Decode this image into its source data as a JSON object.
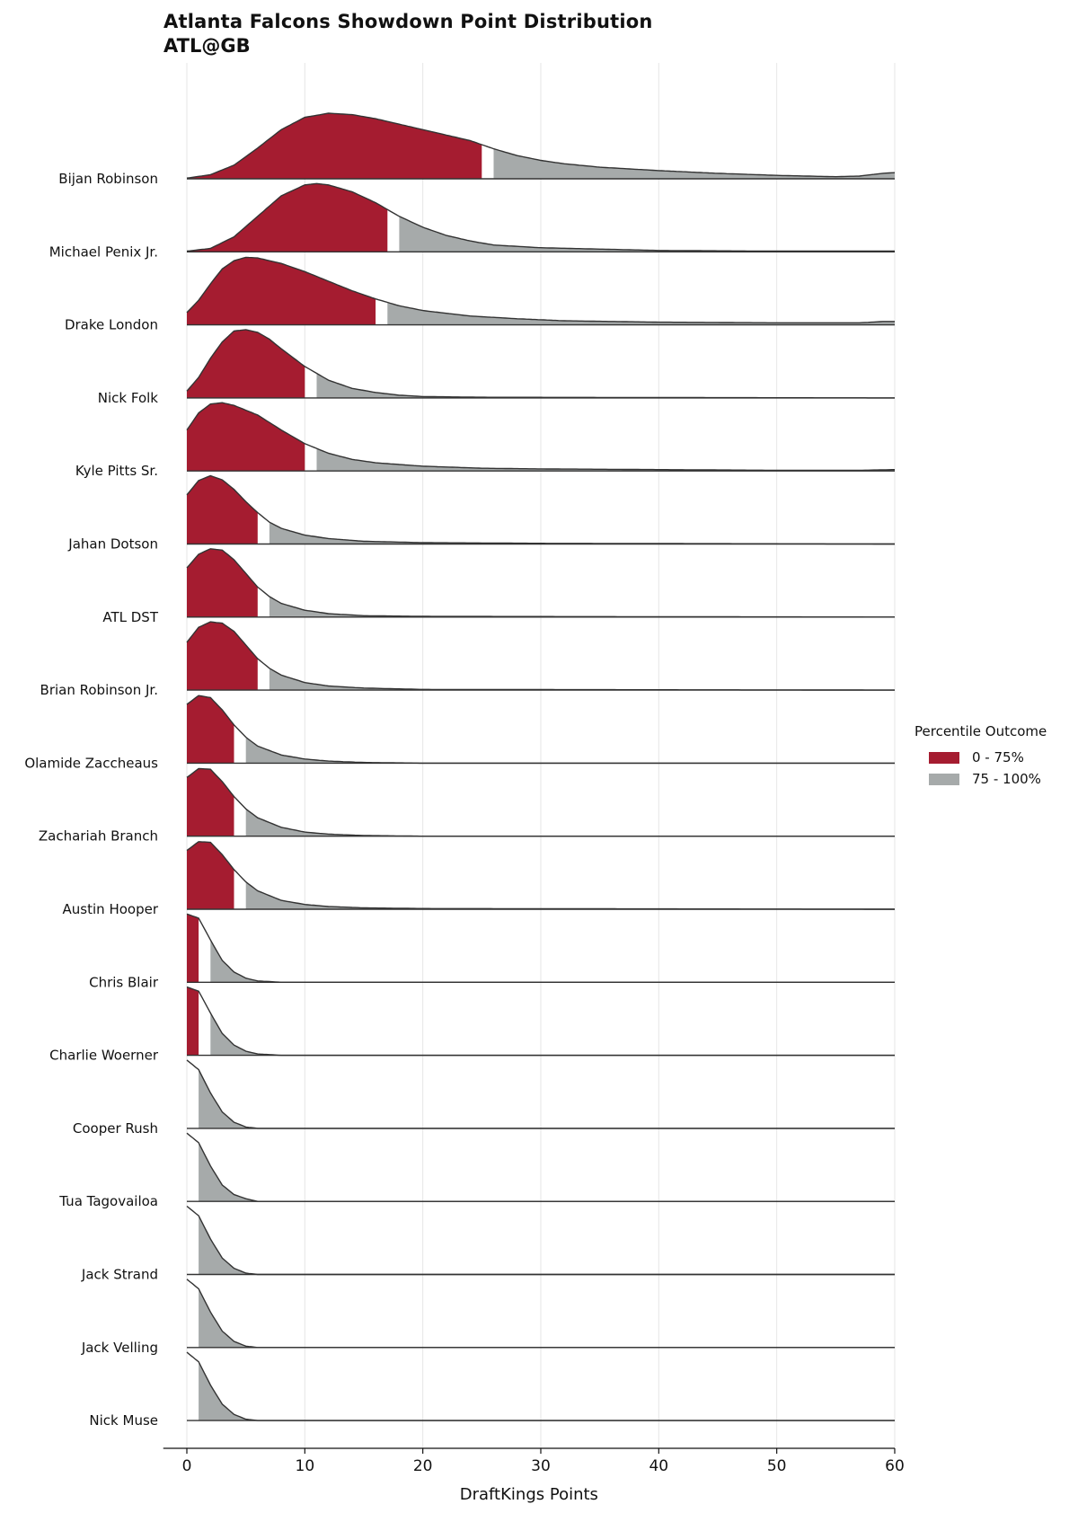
{
  "title": "Atlanta Falcons Showdown Point Distribution",
  "subtitle": "ATL@GB",
  "legend": {
    "title": "Percentile Outcome",
    "items": [
      {
        "label": "0 - 75%",
        "color": "#a51c30"
      },
      {
        "label": "75 - 100%",
        "color": "#a6aaaa"
      }
    ]
  },
  "chart_data": {
    "type": "ridgeline",
    "xlabel": "DraftKings Points",
    "xlim": [
      -2,
      60
    ],
    "xticks": [
      0,
      10,
      20,
      30,
      40,
      50,
      60
    ],
    "grid": "vertical",
    "legend_position": "right",
    "series": [
      {
        "name": "Bijan Robinson",
        "p75": 25,
        "p75_end": 26,
        "points": [
          [
            0,
            0.01
          ],
          [
            2,
            0.06
          ],
          [
            4,
            0.2
          ],
          [
            6,
            0.45
          ],
          [
            8,
            0.72
          ],
          [
            10,
            0.9
          ],
          [
            12,
            0.96
          ],
          [
            14,
            0.94
          ],
          [
            16,
            0.88
          ],
          [
            18,
            0.8
          ],
          [
            20,
            0.72
          ],
          [
            22,
            0.64
          ],
          [
            24,
            0.56
          ],
          [
            26,
            0.44
          ],
          [
            28,
            0.34
          ],
          [
            30,
            0.27
          ],
          [
            32,
            0.22
          ],
          [
            35,
            0.17
          ],
          [
            40,
            0.12
          ],
          [
            45,
            0.08
          ],
          [
            50,
            0.05
          ],
          [
            55,
            0.03
          ],
          [
            57,
            0.04
          ],
          [
            59,
            0.08
          ],
          [
            60,
            0.09
          ]
        ]
      },
      {
        "name": "Michael Penix Jr.",
        "p75": 17,
        "p75_end": 18,
        "points": [
          [
            0,
            0.01
          ],
          [
            2,
            0.05
          ],
          [
            4,
            0.22
          ],
          [
            6,
            0.52
          ],
          [
            8,
            0.82
          ],
          [
            10,
            0.98
          ],
          [
            11,
            1.0
          ],
          [
            12,
            0.98
          ],
          [
            14,
            0.88
          ],
          [
            16,
            0.72
          ],
          [
            18,
            0.52
          ],
          [
            20,
            0.36
          ],
          [
            22,
            0.24
          ],
          [
            24,
            0.16
          ],
          [
            26,
            0.1
          ],
          [
            30,
            0.06
          ],
          [
            35,
            0.04
          ],
          [
            40,
            0.02
          ],
          [
            50,
            0.01
          ],
          [
            60,
            0.01
          ]
        ]
      },
      {
        "name": "Drake London",
        "p75": 16,
        "p75_end": 17,
        "points": [
          [
            0,
            0.18
          ],
          [
            1,
            0.36
          ],
          [
            2,
            0.6
          ],
          [
            3,
            0.82
          ],
          [
            4,
            0.94
          ],
          [
            5,
            0.99
          ],
          [
            6,
            0.98
          ],
          [
            8,
            0.9
          ],
          [
            10,
            0.78
          ],
          [
            12,
            0.64
          ],
          [
            14,
            0.5
          ],
          [
            16,
            0.38
          ],
          [
            18,
            0.28
          ],
          [
            20,
            0.21
          ],
          [
            24,
            0.13
          ],
          [
            28,
            0.09
          ],
          [
            32,
            0.06
          ],
          [
            40,
            0.04
          ],
          [
            50,
            0.03
          ],
          [
            57,
            0.03
          ],
          [
            59,
            0.05
          ],
          [
            60,
            0.05
          ]
        ]
      },
      {
        "name": "Nick Folk",
        "p75": 10,
        "p75_end": 11,
        "points": [
          [
            0,
            0.1
          ],
          [
            1,
            0.3
          ],
          [
            2,
            0.58
          ],
          [
            3,
            0.82
          ],
          [
            4,
            0.98
          ],
          [
            5,
            1.0
          ],
          [
            6,
            0.96
          ],
          [
            7,
            0.86
          ],
          [
            8,
            0.72
          ],
          [
            10,
            0.46
          ],
          [
            12,
            0.26
          ],
          [
            14,
            0.14
          ],
          [
            16,
            0.08
          ],
          [
            18,
            0.04
          ],
          [
            20,
            0.02
          ],
          [
            25,
            0.01
          ],
          [
            60,
            0.0
          ]
        ]
      },
      {
        "name": "Kyle Pitts Sr.",
        "p75": 10,
        "p75_end": 11,
        "points": [
          [
            0,
            0.6
          ],
          [
            1,
            0.85
          ],
          [
            2,
            0.98
          ],
          [
            3,
            1.0
          ],
          [
            4,
            0.96
          ],
          [
            6,
            0.82
          ],
          [
            8,
            0.6
          ],
          [
            10,
            0.4
          ],
          [
            12,
            0.26
          ],
          [
            14,
            0.17
          ],
          [
            16,
            0.12
          ],
          [
            20,
            0.07
          ],
          [
            25,
            0.04
          ],
          [
            30,
            0.03
          ],
          [
            40,
            0.02
          ],
          [
            50,
            0.01
          ],
          [
            57,
            0.01
          ],
          [
            60,
            0.02
          ]
        ]
      },
      {
        "name": "Jahan Dotson",
        "p75": 6,
        "p75_end": 7,
        "points": [
          [
            0,
            0.72
          ],
          [
            1,
            0.93
          ],
          [
            2,
            1.0
          ],
          [
            3,
            0.94
          ],
          [
            4,
            0.8
          ],
          [
            5,
            0.62
          ],
          [
            6,
            0.46
          ],
          [
            7,
            0.32
          ],
          [
            8,
            0.23
          ],
          [
            10,
            0.13
          ],
          [
            12,
            0.08
          ],
          [
            15,
            0.04
          ],
          [
            20,
            0.02
          ],
          [
            30,
            0.01
          ],
          [
            60,
            0.0
          ]
        ]
      },
      {
        "name": "ATL DST",
        "p75": 6,
        "p75_end": 7,
        "points": [
          [
            0,
            0.72
          ],
          [
            1,
            0.92
          ],
          [
            2,
            1.0
          ],
          [
            3,
            0.98
          ],
          [
            4,
            0.84
          ],
          [
            5,
            0.64
          ],
          [
            6,
            0.44
          ],
          [
            7,
            0.3
          ],
          [
            8,
            0.2
          ],
          [
            10,
            0.1
          ],
          [
            12,
            0.05
          ],
          [
            15,
            0.02
          ],
          [
            20,
            0.01
          ],
          [
            60,
            0.0
          ]
        ]
      },
      {
        "name": "Brian Robinson Jr.",
        "p75": 6,
        "p75_end": 7,
        "points": [
          [
            0,
            0.7
          ],
          [
            1,
            0.92
          ],
          [
            2,
            1.0
          ],
          [
            3,
            0.98
          ],
          [
            4,
            0.86
          ],
          [
            5,
            0.66
          ],
          [
            6,
            0.46
          ],
          [
            7,
            0.32
          ],
          [
            8,
            0.22
          ],
          [
            10,
            0.11
          ],
          [
            12,
            0.06
          ],
          [
            15,
            0.03
          ],
          [
            20,
            0.01
          ],
          [
            60,
            0.0
          ]
        ]
      },
      {
        "name": "Olamide Zaccheaus",
        "p75": 4,
        "p75_end": 5,
        "points": [
          [
            0,
            0.86
          ],
          [
            1,
            0.99
          ],
          [
            2,
            0.96
          ],
          [
            3,
            0.78
          ],
          [
            4,
            0.56
          ],
          [
            5,
            0.38
          ],
          [
            6,
            0.25
          ],
          [
            8,
            0.12
          ],
          [
            10,
            0.06
          ],
          [
            12,
            0.03
          ],
          [
            15,
            0.01
          ],
          [
            20,
            0.0
          ],
          [
            60,
            0.0
          ]
        ]
      },
      {
        "name": "Zachariah Branch",
        "p75": 4,
        "p75_end": 5,
        "points": [
          [
            0,
            0.86
          ],
          [
            1,
            0.99
          ],
          [
            2,
            0.98
          ],
          [
            3,
            0.8
          ],
          [
            4,
            0.58
          ],
          [
            5,
            0.4
          ],
          [
            6,
            0.27
          ],
          [
            8,
            0.13
          ],
          [
            10,
            0.06
          ],
          [
            12,
            0.03
          ],
          [
            15,
            0.01
          ],
          [
            20,
            0.0
          ],
          [
            60,
            0.0
          ]
        ]
      },
      {
        "name": "Austin Hooper",
        "p75": 4,
        "p75_end": 5,
        "points": [
          [
            0,
            0.86
          ],
          [
            1,
            0.99
          ],
          [
            2,
            0.98
          ],
          [
            3,
            0.8
          ],
          [
            4,
            0.58
          ],
          [
            5,
            0.4
          ],
          [
            6,
            0.27
          ],
          [
            8,
            0.13
          ],
          [
            10,
            0.07
          ],
          [
            12,
            0.04
          ],
          [
            15,
            0.02
          ],
          [
            20,
            0.01
          ],
          [
            60,
            0.0
          ]
        ]
      },
      {
        "name": "Chris Blair",
        "p75": 1,
        "p75_end": 2,
        "points": [
          [
            0,
            1.0
          ],
          [
            1,
            0.94
          ],
          [
            2,
            0.62
          ],
          [
            3,
            0.32
          ],
          [
            4,
            0.15
          ],
          [
            5,
            0.06
          ],
          [
            6,
            0.02
          ],
          [
            8,
            0.0
          ],
          [
            60,
            0.0
          ]
        ]
      },
      {
        "name": "Charlie Woerner",
        "p75": 1,
        "p75_end": 2,
        "points": [
          [
            0,
            1.0
          ],
          [
            1,
            0.94
          ],
          [
            2,
            0.62
          ],
          [
            3,
            0.32
          ],
          [
            4,
            0.15
          ],
          [
            5,
            0.06
          ],
          [
            6,
            0.02
          ],
          [
            8,
            0.0
          ],
          [
            60,
            0.0
          ]
        ]
      },
      {
        "name": "Cooper Rush",
        "p75": 0,
        "p75_end": 1,
        "points": [
          [
            0,
            1.0
          ],
          [
            1,
            0.86
          ],
          [
            2,
            0.52
          ],
          [
            3,
            0.24
          ],
          [
            4,
            0.09
          ],
          [
            5,
            0.02
          ],
          [
            6,
            0.0
          ],
          [
            60,
            0.0
          ]
        ]
      },
      {
        "name": "Tua Tagovailoa",
        "p75": 0,
        "p75_end": 1,
        "points": [
          [
            0,
            1.0
          ],
          [
            1,
            0.86
          ],
          [
            2,
            0.52
          ],
          [
            3,
            0.24
          ],
          [
            4,
            0.1
          ],
          [
            5,
            0.04
          ],
          [
            6,
            0.0
          ],
          [
            60,
            0.0
          ]
        ]
      },
      {
        "name": "Jack Strand",
        "p75": 0,
        "p75_end": 1,
        "points": [
          [
            0,
            1.0
          ],
          [
            1,
            0.86
          ],
          [
            2,
            0.52
          ],
          [
            3,
            0.24
          ],
          [
            4,
            0.09
          ],
          [
            5,
            0.02
          ],
          [
            6,
            0.0
          ],
          [
            60,
            0.0
          ]
        ]
      },
      {
        "name": "Jack Velling",
        "p75": 0,
        "p75_end": 1,
        "points": [
          [
            0,
            1.0
          ],
          [
            1,
            0.86
          ],
          [
            2,
            0.52
          ],
          [
            3,
            0.24
          ],
          [
            4,
            0.09
          ],
          [
            5,
            0.02
          ],
          [
            6,
            0.0
          ],
          [
            60,
            0.0
          ]
        ]
      },
      {
        "name": "Nick Muse",
        "p75": 0,
        "p75_end": 1,
        "points": [
          [
            0,
            1.0
          ],
          [
            1,
            0.86
          ],
          [
            2,
            0.52
          ],
          [
            3,
            0.24
          ],
          [
            4,
            0.09
          ],
          [
            5,
            0.02
          ],
          [
            6,
            0.0
          ],
          [
            60,
            0.0
          ]
        ]
      }
    ]
  }
}
